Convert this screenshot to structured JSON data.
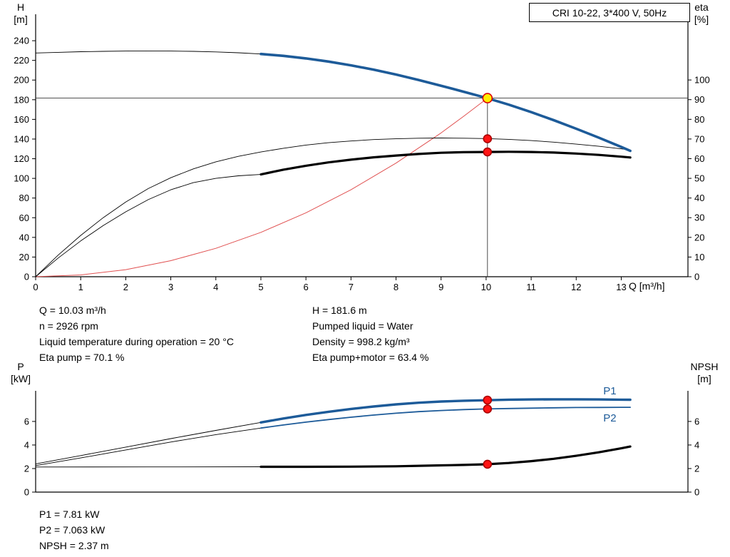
{
  "title_box": {
    "label": "CRI 10-22, 3*400 V, 50Hz"
  },
  "axis_labels": {
    "h_symbol": "H",
    "h_unit": "[m]",
    "eta_symbol": "eta",
    "eta_unit": "[%]",
    "q_label": "Q [m³/h]",
    "p_symbol": "P",
    "p_unit": "[kW]",
    "npsh_symbol": "NPSH",
    "npsh_unit": "[m]"
  },
  "info": {
    "left": [
      "Q = 10.03 m³/h",
      "n = 2926 rpm",
      "Liquid temperature during operation = 20 °C",
      "Eta pump = 70.1 %"
    ],
    "right": [
      "H = 181.6 m",
      "Pumped liquid = Water",
      "Density = 998.2 kg/m³",
      "Eta pump+motor = 63.4 %"
    ],
    "bottom": [
      "P1 = 7.81 kW",
      "P2 = 7.063 kW",
      "NPSH = 2.37 m"
    ]
  },
  "colors": {
    "curve_blue": "#1d5b99",
    "curve_black": "#000000",
    "system_curve_red": "#e05050",
    "marker_red": "#ff1515",
    "marker_yellow": "#ffee00",
    "reference_line": "#3a3a3a"
  },
  "chart_data": [
    {
      "type": "line",
      "name": "qh-eta-curve",
      "xlabel": "Q [m³/h]",
      "ylabel_left": "H [m]",
      "ylabel_right": "eta [%]",
      "xlim": [
        0,
        14.48
      ],
      "ylim_left": [
        0,
        266.9
      ],
      "ylim_right": [
        0,
        133.4
      ],
      "x_ticks": [
        0,
        1,
        2,
        3,
        4,
        5,
        6,
        7,
        8,
        9,
        10,
        11,
        12,
        13
      ],
      "y_left_ticks": [
        0,
        20,
        40,
        60,
        80,
        100,
        120,
        140,
        160,
        180,
        200,
        220,
        240
      ],
      "y_right_ticks": [
        0,
        10,
        20,
        30,
        40,
        50,
        60,
        70,
        80,
        90,
        100
      ],
      "grid": false,
      "series": [
        {
          "name": "system-curve",
          "axis": "left",
          "color": "#e05050",
          "width": 1,
          "points": [
            [
              0,
              0
            ],
            [
              1,
              1.8
            ],
            [
              2,
              7.2
            ],
            [
              3,
              16.3
            ],
            [
              4,
              28.9
            ],
            [
              5,
              45.1
            ],
            [
              6,
              65
            ],
            [
              7,
              88.4
            ],
            [
              8,
              115.5
            ],
            [
              9,
              146.2
            ],
            [
              9.5,
              163.1
            ],
            [
              10.03,
              181.6
            ]
          ]
        },
        {
          "name": "eta-pump",
          "axis": "right",
          "color": "#000000",
          "width": 0.9,
          "points": [
            [
              0,
              0
            ],
            [
              0.5,
              11
            ],
            [
              1,
              21
            ],
            [
              1.5,
              30
            ],
            [
              2,
              38
            ],
            [
              2.5,
              44.8
            ],
            [
              3,
              50.3
            ],
            [
              3.5,
              54.8
            ],
            [
              4,
              58.4
            ],
            [
              4.5,
              61.2
            ],
            [
              5,
              63.4
            ],
            [
              5.5,
              65.3
            ],
            [
              6,
              66.9
            ],
            [
              6.5,
              68.1
            ],
            [
              7,
              69
            ],
            [
              7.5,
              69.7
            ],
            [
              8,
              70.1
            ],
            [
              8.5,
              70.4
            ],
            [
              9,
              70.5
            ],
            [
              9.5,
              70.4
            ],
            [
              10,
              70.2
            ],
            [
              10.5,
              69.8
            ],
            [
              11,
              69.2
            ],
            [
              11.5,
              68.4
            ],
            [
              12,
              67.4
            ],
            [
              12.5,
              66.3
            ],
            [
              13,
              65
            ],
            [
              13.2,
              64.4
            ]
          ]
        },
        {
          "name": "eta-pump-motor-extension",
          "axis": "right",
          "color": "#000000",
          "width": 0.9,
          "points": [
            [
              0,
              0
            ],
            [
              0.5,
              9.5
            ],
            [
              1,
              18.2
            ],
            [
              1.5,
              26
            ],
            [
              2,
              33
            ],
            [
              2.5,
              39.2
            ],
            [
              3,
              44.2
            ],
            [
              3.5,
              47.8
            ],
            [
              4,
              50
            ],
            [
              4.5,
              51.3
            ],
            [
              5,
              52
            ]
          ]
        },
        {
          "name": "eta-pump-motor-published",
          "axis": "right",
          "color": "#000000",
          "width": 3.2,
          "points": [
            [
              5,
              52
            ],
            [
              5.5,
              54.4
            ],
            [
              6,
              56.4
            ],
            [
              6.5,
              58.1
            ],
            [
              7,
              59.5
            ],
            [
              7.5,
              60.7
            ],
            [
              8,
              61.6
            ],
            [
              8.5,
              62.4
            ],
            [
              9,
              63
            ],
            [
              9.5,
              63.3
            ],
            [
              10,
              63.4
            ],
            [
              10.5,
              63.5
            ],
            [
              11,
              63.4
            ],
            [
              11.5,
              63.1
            ],
            [
              12,
              62.6
            ],
            [
              12.5,
              61.9
            ],
            [
              13,
              61
            ],
            [
              13.2,
              60.6
            ]
          ]
        },
        {
          "name": "head-extension",
          "axis": "left",
          "color": "#000000",
          "width": 0.9,
          "points": [
            [
              0,
              227.5
            ],
            [
              0.5,
              228.2
            ],
            [
              1,
              228.8
            ],
            [
              1.5,
              229.2
            ],
            [
              2,
              229.5
            ],
            [
              2.5,
              229.6
            ],
            [
              3,
              229.5
            ],
            [
              3.5,
              229.2
            ],
            [
              4,
              228.6
            ],
            [
              4.5,
              227.7
            ],
            [
              5,
              226.5
            ]
          ]
        },
        {
          "name": "head-published",
          "axis": "left",
          "color": "#1d5b99",
          "width": 3.6,
          "points": [
            [
              5,
              226.5
            ],
            [
              5.5,
              224.6
            ],
            [
              6,
              222
            ],
            [
              6.5,
              218.8
            ],
            [
              7,
              215
            ],
            [
              7.5,
              210.6
            ],
            [
              8,
              205.6
            ],
            [
              8.5,
              200.1
            ],
            [
              9,
              194.2
            ],
            [
              9.5,
              188.1
            ],
            [
              10,
              181.9
            ],
            [
              10.5,
              175
            ],
            [
              11,
              167.4
            ],
            [
              11.5,
              159.2
            ],
            [
              12,
              150.5
            ],
            [
              12.5,
              141.4
            ],
            [
              13,
              131.9
            ],
            [
              13.2,
              128
            ]
          ]
        }
      ],
      "annotations": {
        "hline": {
          "y": 181.6
        },
        "vline": {
          "x": 10.03,
          "y_from": 0,
          "y_to": 181.6
        }
      },
      "markers": [
        {
          "name": "eta-pump-point",
          "x": 10.03,
          "y": 70.1,
          "axis": "right",
          "fill": "#ff1515",
          "stroke": "#aa0000",
          "r": 5.5
        },
        {
          "name": "eta-pump-motor-point",
          "x": 10.03,
          "y": 63.4,
          "axis": "right",
          "fill": "#ff1515",
          "stroke": "#aa0000",
          "r": 5.5
        },
        {
          "name": "duty-point",
          "x": 10.03,
          "y": 181.6,
          "axis": "left",
          "fill": "#ffee00",
          "stroke": "#dd0000",
          "r": 6.5,
          "interactable": true
        }
      ]
    },
    {
      "type": "line",
      "name": "power-npsh-curve",
      "xlabel": "",
      "ylabel_left": "P [kW]",
      "ylabel_right": "NPSH [m]",
      "xlim": [
        0,
        14.48
      ],
      "ylim_left": [
        0,
        8.6
      ],
      "ylim_right": [
        0,
        8.6
      ],
      "x_ticks": [],
      "y_left_ticks": [
        0,
        2,
        4,
        6
      ],
      "y_right_ticks": [
        0,
        2,
        4,
        6
      ],
      "grid": false,
      "series": [
        {
          "name": "npsh-extension",
          "axis": "right",
          "color": "#000000",
          "width": 0.9,
          "points": [
            [
              0,
              2.13
            ],
            [
              2.5,
              2.14
            ],
            [
              5,
              2.15
            ]
          ]
        },
        {
          "name": "npsh-published",
          "axis": "right",
          "color": "#000000",
          "width": 3.2,
          "points": [
            [
              5,
              2.15
            ],
            [
              6,
              2.15
            ],
            [
              7,
              2.16
            ],
            [
              8,
              2.19
            ],
            [
              9,
              2.27
            ],
            [
              9.5,
              2.31
            ],
            [
              10,
              2.36
            ],
            [
              10.5,
              2.47
            ],
            [
              11,
              2.63
            ],
            [
              11.5,
              2.83
            ],
            [
              12,
              3.08
            ],
            [
              12.5,
              3.38
            ],
            [
              13,
              3.72
            ],
            [
              13.2,
              3.87
            ]
          ]
        },
        {
          "name": "p2-extension",
          "axis": "left",
          "color": "#000000",
          "width": 0.9,
          "points": [
            [
              0,
              2.25
            ],
            [
              1,
              2.9
            ],
            [
              2,
              3.58
            ],
            [
              3,
              4.25
            ],
            [
              4,
              4.88
            ],
            [
              5,
              5.44
            ]
          ]
        },
        {
          "name": "p2-published",
          "axis": "left",
          "color": "#1d5b99",
          "width": 1.8,
          "label": "P2",
          "label_at": [
            12.6,
            6.0
          ],
          "points": [
            [
              5,
              5.44
            ],
            [
              5.5,
              5.7
            ],
            [
              6,
              5.94
            ],
            [
              6.5,
              6.16
            ],
            [
              7,
              6.36
            ],
            [
              7.5,
              6.54
            ],
            [
              8,
              6.7
            ],
            [
              8.5,
              6.83
            ],
            [
              9,
              6.93
            ],
            [
              9.5,
              7.01
            ],
            [
              10,
              7.06
            ],
            [
              10.5,
              7.1
            ],
            [
              11,
              7.13
            ],
            [
              11.5,
              7.16
            ],
            [
              12,
              7.18
            ],
            [
              12.5,
              7.19
            ],
            [
              13,
              7.2
            ],
            [
              13.2,
              7.2
            ]
          ]
        },
        {
          "name": "p1-extension",
          "axis": "left",
          "color": "#000000",
          "width": 0.9,
          "points": [
            [
              0,
              2.4
            ],
            [
              1,
              3.1
            ],
            [
              2,
              3.82
            ],
            [
              3,
              4.54
            ],
            [
              4,
              5.24
            ],
            [
              5,
              5.92
            ]
          ]
        },
        {
          "name": "p1-published",
          "axis": "left",
          "color": "#1d5b99",
          "width": 3.4,
          "label": "P1",
          "label_at": [
            12.6,
            8.3
          ],
          "points": [
            [
              5,
              5.92
            ],
            [
              5.5,
              6.25
            ],
            [
              6,
              6.55
            ],
            [
              6.5,
              6.82
            ],
            [
              7,
              7.06
            ],
            [
              7.5,
              7.27
            ],
            [
              8,
              7.45
            ],
            [
              8.5,
              7.59
            ],
            [
              9,
              7.69
            ],
            [
              9.5,
              7.76
            ],
            [
              10,
              7.8
            ],
            [
              10.5,
              7.85
            ],
            [
              11,
              7.87
            ],
            [
              11.5,
              7.88
            ],
            [
              12,
              7.88
            ],
            [
              12.5,
              7.87
            ],
            [
              13,
              7.85
            ],
            [
              13.2,
              7.84
            ]
          ]
        }
      ],
      "annotations": {},
      "markers": [
        {
          "name": "p1-point",
          "x": 10.03,
          "y": 7.81,
          "axis": "left",
          "fill": "#ff1515",
          "stroke": "#aa0000",
          "r": 5.5
        },
        {
          "name": "p2-point",
          "x": 10.03,
          "y": 7.063,
          "axis": "left",
          "fill": "#ff1515",
          "stroke": "#aa0000",
          "r": 5.5
        },
        {
          "name": "npsh-point",
          "x": 10.03,
          "y": 2.37,
          "axis": "right",
          "fill": "#ff1515",
          "stroke": "#aa0000",
          "r": 5.5
        }
      ]
    }
  ]
}
